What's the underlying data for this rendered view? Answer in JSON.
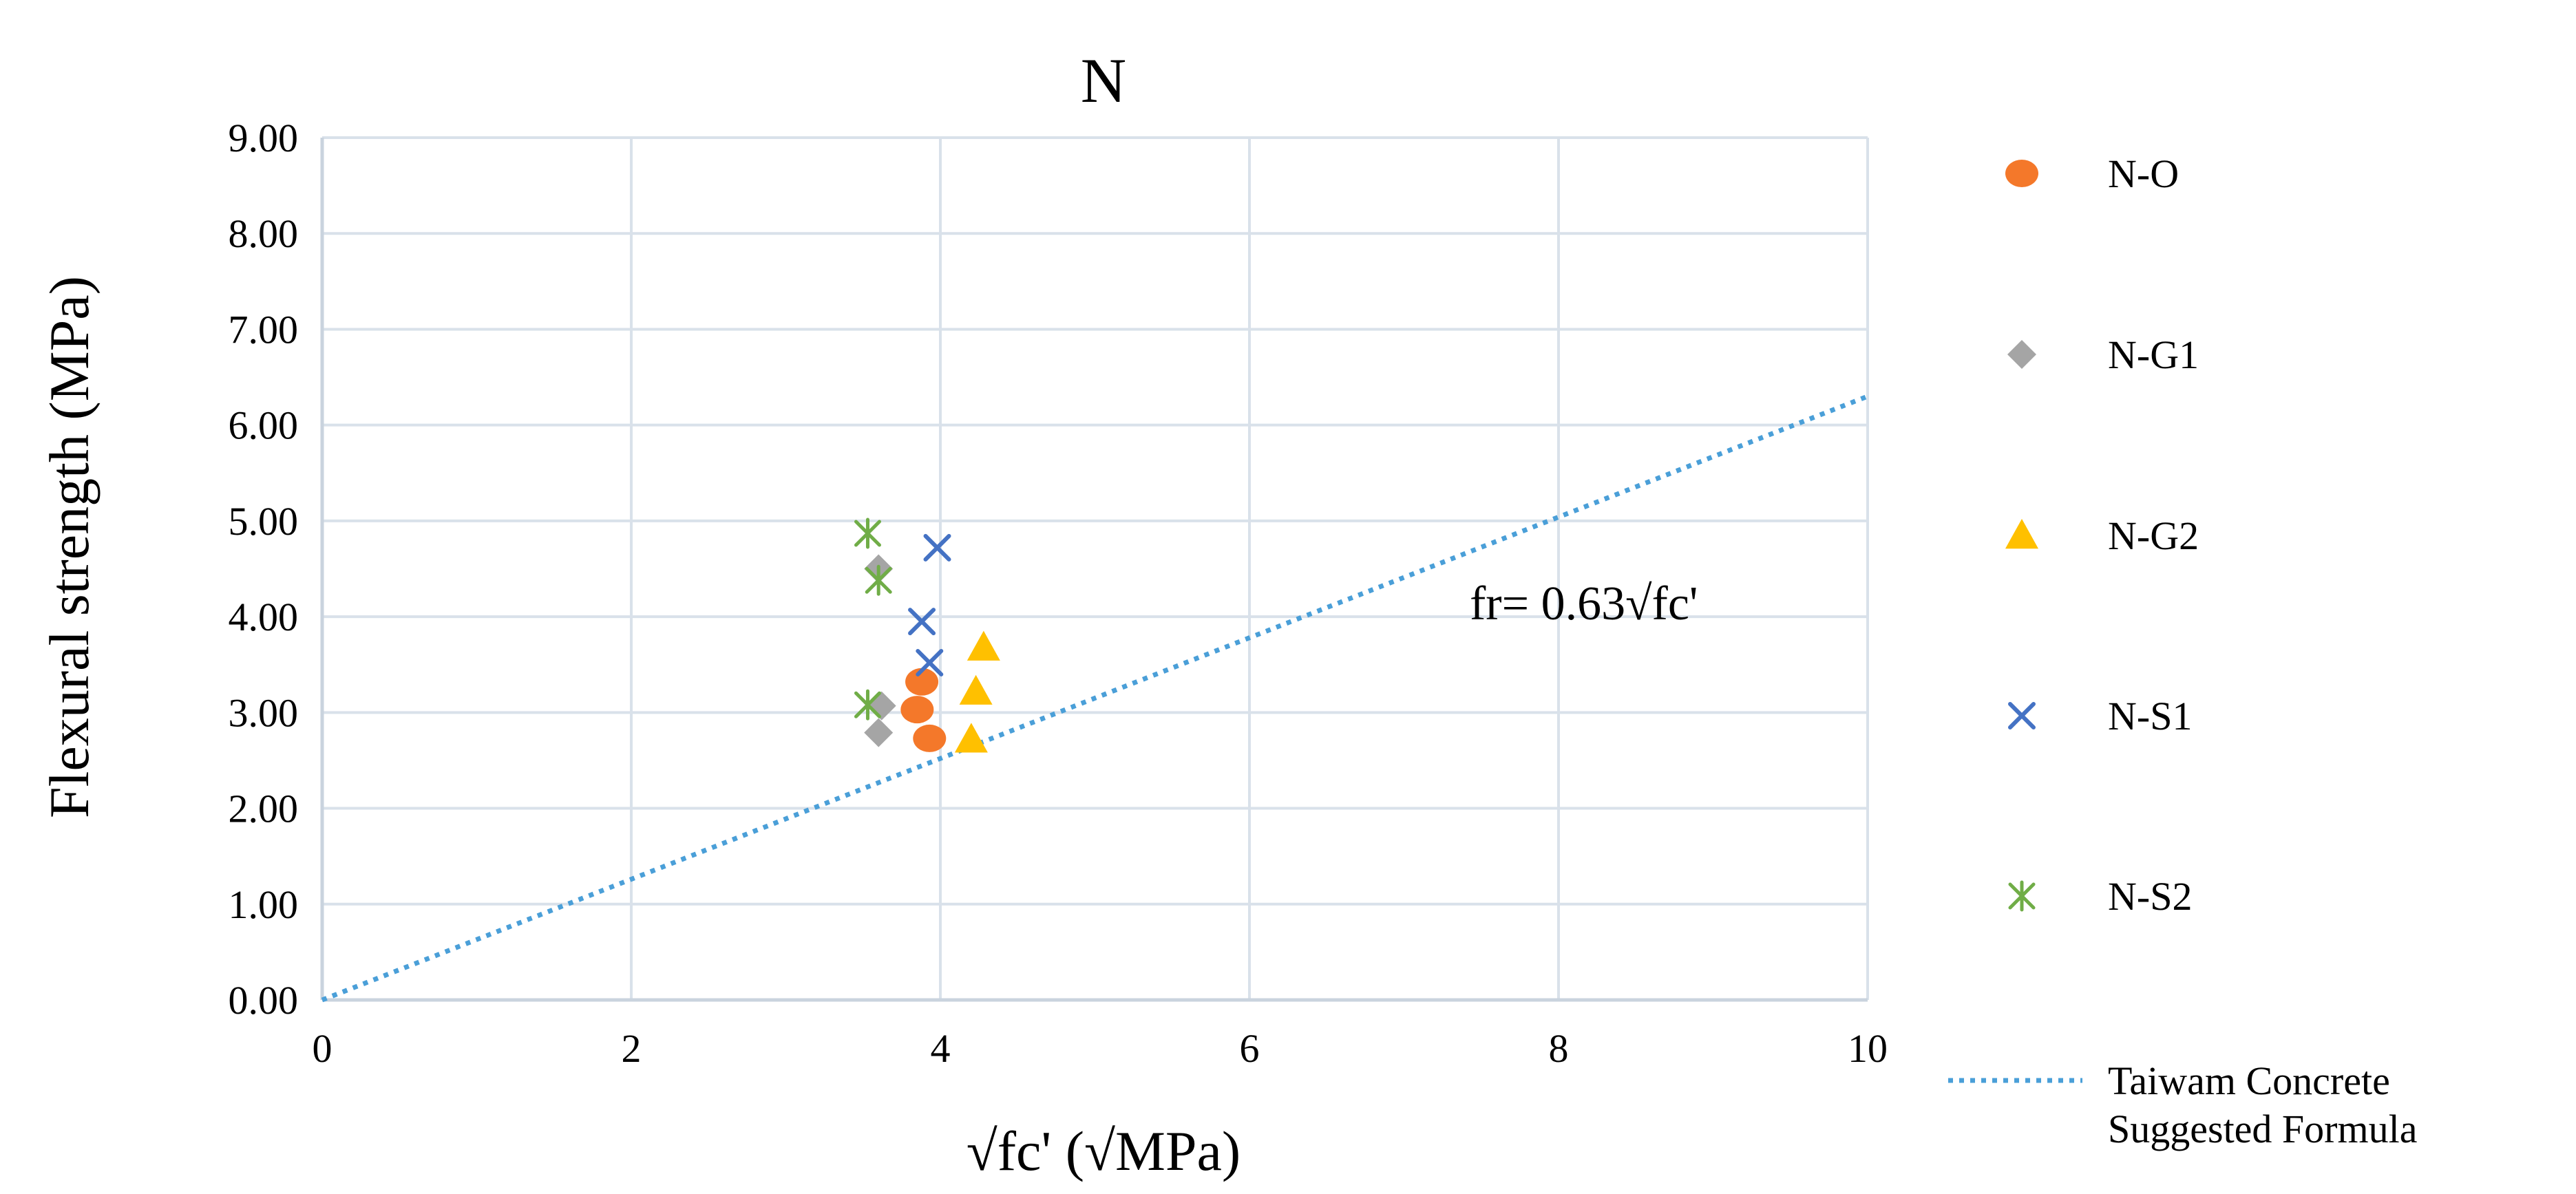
{
  "chart_data": {
    "type": "scatter",
    "title": "N",
    "xlabel": "√fc' (√MPa)",
    "ylabel": "Flexural strength (MPa)",
    "xlim": [
      0,
      10
    ],
    "ylim": [
      0,
      9
    ],
    "x_ticks": [
      0,
      2,
      4,
      6,
      8,
      10
    ],
    "y_ticks": [
      "0.00",
      "1.00",
      "2.00",
      "3.00",
      "4.00",
      "5.00",
      "6.00",
      "7.00",
      "8.00",
      "9.00"
    ],
    "grid": true,
    "legend_position": "right",
    "colors": {
      "grid": "#d9e1ea",
      "axis": "#c9d3de",
      "trend": "#4a9fd8"
    },
    "series": [
      {
        "name": "N-O",
        "marker": "circle",
        "color": "#f4782a",
        "points": [
          [
            3.88,
            3.32
          ],
          [
            3.85,
            3.03
          ],
          [
            3.93,
            2.73
          ]
        ]
      },
      {
        "name": "N-G1",
        "marker": "diamond",
        "color": "#a5a5a5",
        "points": [
          [
            3.6,
            4.5
          ],
          [
            3.62,
            3.07
          ],
          [
            3.6,
            2.79
          ]
        ]
      },
      {
        "name": "N-G2",
        "marker": "triangle",
        "color": "#ffc000",
        "points": [
          [
            4.28,
            3.68
          ],
          [
            4.23,
            3.22
          ],
          [
            4.2,
            2.72
          ]
        ]
      },
      {
        "name": "N-S1",
        "marker": "x",
        "color": "#4472c4",
        "points": [
          [
            3.98,
            4.72
          ],
          [
            3.88,
            3.95
          ],
          [
            3.93,
            3.52
          ]
        ]
      },
      {
        "name": "N-S2",
        "marker": "star",
        "color": "#70ad47",
        "points": [
          [
            3.53,
            4.87
          ],
          [
            3.6,
            4.38
          ],
          [
            3.53,
            3.08
          ]
        ]
      }
    ],
    "trendline": {
      "name_lines": [
        "Taiwam Concrete",
        "Suggested Formula"
      ],
      "style": "dotted",
      "slope": 0.63,
      "x_range": [
        0,
        10
      ]
    },
    "annotation": "fr= 0.63√fc'"
  }
}
